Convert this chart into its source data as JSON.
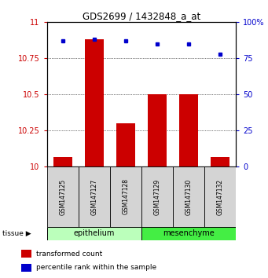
{
  "title": "GDS2699 / 1432848_a_at",
  "samples": [
    "GSM147125",
    "GSM147127",
    "GSM147128",
    "GSM147129",
    "GSM147130",
    "GSM147132"
  ],
  "groups": [
    "epithelium",
    "epithelium",
    "epithelium",
    "mesenchyme",
    "mesenchyme",
    "mesenchyme"
  ],
  "bar_values": [
    10.07,
    10.88,
    10.3,
    10.5,
    10.5,
    10.07
  ],
  "dot_values": [
    87,
    88,
    87,
    85,
    85,
    78
  ],
  "bar_color": "#cc0000",
  "dot_color": "#0000cc",
  "bar_base": 10.0,
  "ylim_left": [
    10.0,
    11.0
  ],
  "ylim_right": [
    0,
    100
  ],
  "yticks_left": [
    10.0,
    10.25,
    10.5,
    10.75,
    11.0
  ],
  "ytick_labels_left": [
    "10",
    "10.25",
    "10.5",
    "10.75",
    "11"
  ],
  "yticks_right": [
    0,
    25,
    50,
    75,
    100
  ],
  "ytick_labels_right": [
    "0",
    "25",
    "50",
    "75",
    "100%"
  ],
  "group_colors": {
    "epithelium": "#bbffbb",
    "mesenchyme": "#44ee44"
  },
  "legend_items": [
    {
      "label": "transformed count",
      "color": "#cc0000"
    },
    {
      "label": "percentile rank within the sample",
      "color": "#0000cc"
    }
  ],
  "bar_width": 0.6,
  "tick_label_color_left": "#cc0000",
  "tick_label_color_right": "#0000cc",
  "figsize": [
    3.41,
    3.54
  ],
  "dpi": 100
}
